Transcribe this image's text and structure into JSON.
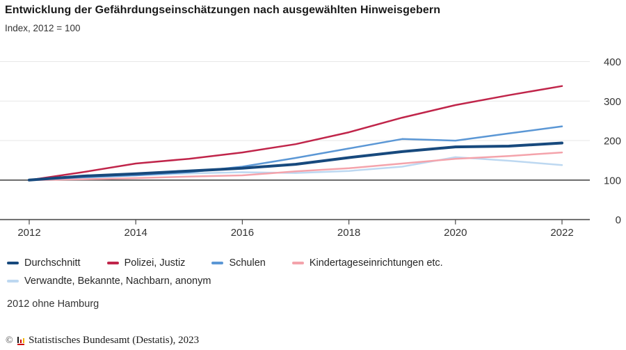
{
  "header": {
    "title": "Entwicklung der Gefährdungseinschätzungen nach ausgewählten Hinweisgebern",
    "subtitle": "Index, 2012 = 100"
  },
  "chart_data": {
    "type": "line",
    "x": [
      2012,
      2013,
      2014,
      2015,
      2016,
      2017,
      2018,
      2019,
      2020,
      2021,
      2022
    ],
    "series": [
      {
        "name": "Durchschnitt",
        "color": "#17497d",
        "width": 4,
        "values": [
          100,
          110,
          116,
          123,
          130,
          140,
          157,
          172,
          184,
          186,
          194
        ]
      },
      {
        "name": "Polizei, Justiz",
        "color": "#c0254a",
        "width": 2.5,
        "values": [
          100,
          120,
          142,
          154,
          170,
          191,
          221,
          258,
          290,
          315,
          338
        ]
      },
      {
        "name": "Schulen",
        "color": "#5b97d5",
        "width": 2.5,
        "values": [
          100,
          107,
          112,
          120,
          134,
          156,
          180,
          204,
          200,
          218,
          236
        ]
      },
      {
        "name": "Kindertageseinrichtungen etc.",
        "color": "#f4a3ab",
        "width": 2.5,
        "values": [
          100,
          102,
          105,
          109,
          112,
          122,
          130,
          142,
          154,
          161,
          170
        ]
      },
      {
        "name": "Verwandte, Bekannte, Nachbarn, anonym",
        "color": "#bdd8f1",
        "width": 2.5,
        "values": [
          100,
          106,
          112,
          117,
          120,
          118,
          123,
          134,
          158,
          149,
          138
        ]
      }
    ],
    "x_ticks": [
      2012,
      2014,
      2016,
      2018,
      2020,
      2022
    ],
    "y_ticks": [
      400,
      300,
      200,
      100,
      0
    ],
    "ylim": [
      0,
      400
    ],
    "reference_line": 100,
    "grid": true,
    "legend_position": "bottom"
  },
  "note": "2012 ohne Hamburg",
  "footer": {
    "copyright_symbol": "©",
    "text": "Statistisches Bundesamt (Destatis), 2023"
  },
  "colors": {
    "grid": "#e7e7e7",
    "axis": "#4a4a4a",
    "tick_label": "#333333"
  }
}
